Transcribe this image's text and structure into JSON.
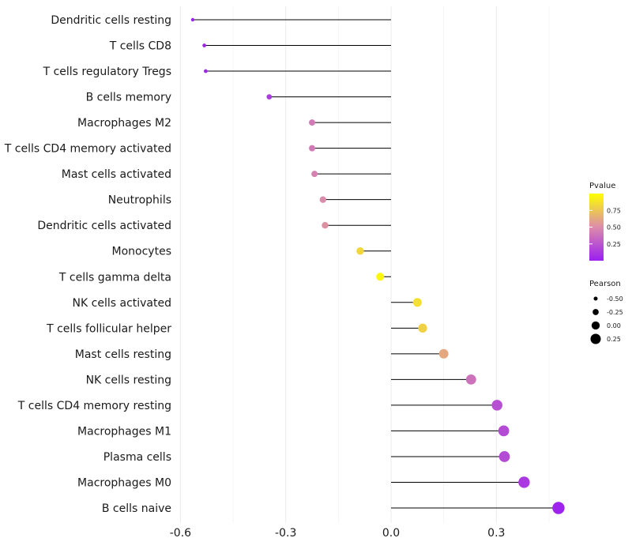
{
  "chart_data": {
    "type": "lollipop",
    "title": "",
    "xlabel": "",
    "ylabel": "",
    "xlim": [
      -0.6,
      0.48
    ],
    "xticks": [
      -0.6,
      -0.3,
      0.0,
      0.3
    ],
    "xtick_labels": [
      "-0.6",
      "-0.3",
      "0.0",
      "0.3"
    ],
    "grid": true,
    "categories": [
      "Dendritic cells resting",
      "T cells CD8",
      "T cells regulatory  Tregs",
      "B cells memory",
      "Macrophages M2",
      "T cells CD4 memory activated",
      "Mast cells activated",
      "Neutrophils",
      "Dendritic cells activated",
      "Monocytes",
      "T cells gamma delta",
      "NK cells activated",
      "T cells follicular helper",
      "Mast cells resting",
      "NK cells resting",
      "T cells CD4 memory resting",
      "Macrophages M1",
      "Plasma cells",
      "Macrophages M0",
      "B cells naive"
    ],
    "pearson": [
      -0.565,
      -0.532,
      -0.528,
      -0.347,
      -0.225,
      -0.225,
      -0.218,
      -0.194,
      -0.188,
      -0.088,
      -0.031,
      0.075,
      0.09,
      0.15,
      0.228,
      0.302,
      0.321,
      0.323,
      0.379,
      0.477
    ],
    "pvalue": [
      0.01,
      0.02,
      0.03,
      0.13,
      0.42,
      0.42,
      0.45,
      0.5,
      0.52,
      0.82,
      0.97,
      0.86,
      0.8,
      0.62,
      0.38,
      0.22,
      0.2,
      0.2,
      0.12,
      0.02
    ],
    "legend": {
      "position": "right",
      "color": {
        "title": "Pvalue",
        "ticks": [
          0.25,
          0.5,
          0.75
        ],
        "tick_labels": [
          "0.25",
          "0.50",
          "0.75"
        ],
        "range": [
          0.0,
          1.0
        ],
        "low_color": "#9a1ff2",
        "mid_color": "#db8caa",
        "high_color": "#ffff00"
      },
      "size": {
        "title": "Pearson",
        "values": [
          -0.5,
          -0.25,
          0.0,
          0.25
        ],
        "labels": [
          "-0.50",
          "-0.25",
          "0.00",
          "0.25"
        ]
      }
    }
  }
}
